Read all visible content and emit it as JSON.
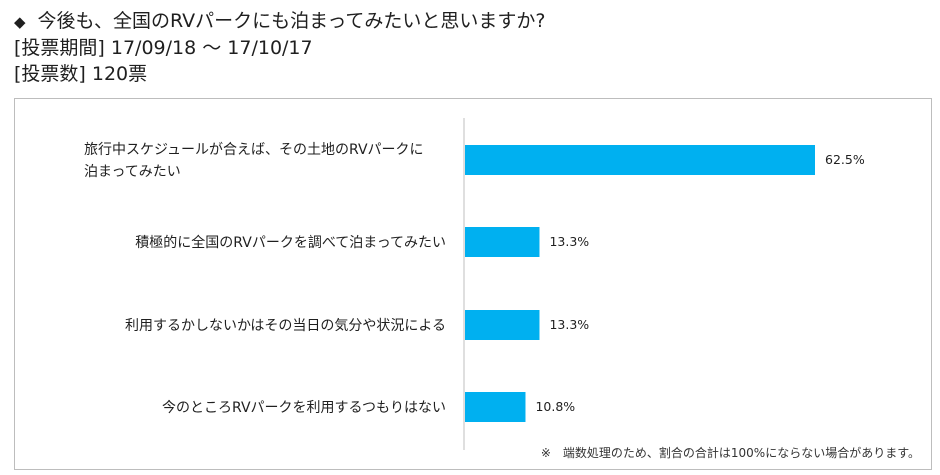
{
  "header": {
    "question": "今後も、全国のRVパークにも泊まってみたいと思いますか?",
    "period": "[投票期間] 17/09/18 ～ 17/10/17",
    "count": "[投票数] 120票"
  },
  "chart_data": {
    "type": "bar",
    "orientation": "horizontal",
    "categories": [
      [
        "旅行中スケジュールが合えば、その土地のRVパークに",
        "泊まってみたい"
      ],
      [
        "積極的に全国のRVパークを調べて泊まってみたい"
      ],
      [
        "利用するかしないかはその当日の気分や状況による"
      ],
      [
        "今のところRVパークを利用するつもりはない"
      ]
    ],
    "values": [
      62.5,
      13.3,
      13.3,
      10.8
    ],
    "value_labels": [
      "62.5%",
      "13.3%",
      "13.3%",
      "10.8%"
    ],
    "bar_color": "#00b0f0",
    "xlim": [
      0,
      100
    ],
    "grid": false,
    "legend": "none"
  },
  "footnote": "※　端数処理のため、割合の合計は100%にならない場合があります。"
}
